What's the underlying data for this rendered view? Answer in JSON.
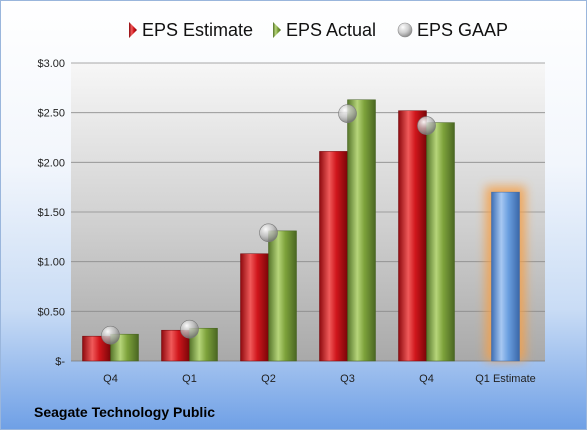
{
  "chart_data": {
    "type": "bar",
    "categories": [
      "Q4",
      "Q1",
      "Q2",
      "Q3",
      "Q4",
      "Q1 Estimate"
    ],
    "series": [
      {
        "name": "EPS Estimate",
        "color": "#d0161c",
        "values": [
          0.25,
          0.31,
          1.08,
          2.11,
          2.52,
          null
        ]
      },
      {
        "name": "EPS Actual",
        "color": "#7da23b",
        "values": [
          0.27,
          0.33,
          1.31,
          2.63,
          2.4,
          null
        ]
      },
      {
        "name": "EPS GAAP",
        "marker": "sphere",
        "color": "#b0b0b0",
        "values": [
          0.26,
          0.32,
          1.29,
          2.49,
          2.37,
          null
        ]
      }
    ],
    "forecast": {
      "category": "Q1 Estimate",
      "value": 1.7,
      "color": "#6a9fe0",
      "glow": "#f5a04a"
    },
    "ylim": [
      0,
      3.0
    ],
    "yticks": [
      0,
      0.5,
      1.0,
      1.5,
      2.0,
      2.5,
      3.0
    ],
    "ytick_labels": [
      "$-",
      "$0.50",
      "$1.00",
      "$1.50",
      "$2.00",
      "$2.50",
      "$3.00"
    ],
    "legend_position": "top",
    "grid": true
  },
  "footer": {
    "company": "Seagate Technology Public"
  }
}
